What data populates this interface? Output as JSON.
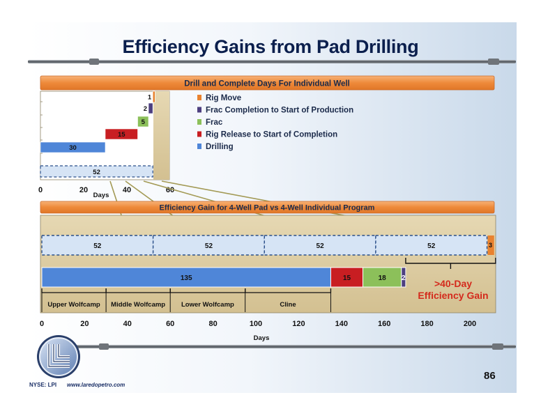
{
  "slide": {
    "title": "Efficiency Gains from Pad Drilling",
    "ticker": "NYSE: LPI",
    "url": "www.laredopetro.com",
    "page_number": "86",
    "colors": {
      "navy": "#0b1f4d",
      "orange_bar": "#f08a3a",
      "panel_tan": "#d9c9a0",
      "drilling_blue": "#4f86d8",
      "rig_release_red": "#c81e22",
      "frac_green": "#8cc05a",
      "frac_completion_purple": "#4d3f80",
      "rig_move_orange": "#e9822f",
      "efficiency_red": "#d42a1c"
    }
  },
  "chart_data": [
    {
      "type": "bar",
      "orientation": "horizontal-stacked",
      "title": "Drill and Complete Days For Individual Well",
      "xlabel": "Days",
      "xlim": [
        0,
        60
      ],
      "xticks": [
        0,
        20,
        40,
        60
      ],
      "segments": [
        {
          "name": "Drilling",
          "start": 0,
          "value": 30,
          "label": "30",
          "color": "#4f86d8"
        },
        {
          "name": "Rig Release to Start of Completion",
          "start": 30,
          "value": 15,
          "label": "15",
          "color": "#c81e22"
        },
        {
          "name": "Frac",
          "start": 45,
          "value": 5,
          "label": "5",
          "color": "#8cc05a"
        },
        {
          "name": "Frac Completion to Start of Production",
          "start": 50,
          "value": 2,
          "label": "2",
          "color": "#4d3f80"
        },
        {
          "name": "Rig Move",
          "start": 52,
          "value": 1,
          "label": "1",
          "color": "#e9822f"
        }
      ],
      "total": {
        "value": 52,
        "label": "52"
      },
      "legend": [
        {
          "name": "Rig Move",
          "color": "#e9822f"
        },
        {
          "name": "Frac Completion to Start of Production",
          "color": "#4d3f80"
        },
        {
          "name": "Frac",
          "color": "#8cc05a"
        },
        {
          "name": "Rig Release to Start of Completion",
          "color": "#c81e22"
        },
        {
          "name": "Drilling",
          "color": "#4f86d8"
        }
      ],
      "legend_position": "right"
    },
    {
      "type": "bar",
      "orientation": "horizontal-stacked",
      "title": "Efficiency Gain for 4-Well Pad vs 4-Well Individual Program",
      "xlabel": "Days",
      "xlim": [
        0,
        215
      ],
      "xticks": [
        0,
        20,
        40,
        60,
        80,
        100,
        120,
        140,
        160,
        180,
        200
      ],
      "individual_program": [
        {
          "start": 0,
          "value": 52,
          "label": "52"
        },
        {
          "start": 52,
          "value": 52,
          "label": "52"
        },
        {
          "start": 104,
          "value": 52,
          "label": "52"
        },
        {
          "start": 156,
          "value": 52,
          "label": "52"
        },
        {
          "start": 208,
          "value": 3,
          "label": "3"
        }
      ],
      "pad_program": [
        {
          "name": "Drilling",
          "start": 0,
          "value": 135,
          "label": "135",
          "color": "#4f86d8"
        },
        {
          "name": "Rig Release to Start of Completion",
          "start": 135,
          "value": 15,
          "label": "15",
          "color": "#c81e22"
        },
        {
          "name": "Frac",
          "start": 150,
          "value": 18,
          "label": "18",
          "color": "#8cc05a"
        },
        {
          "name": "Frac Completion to Start of Production",
          "start": 168,
          "value": 2,
          "label": "2",
          "color": "#4d3f80"
        }
      ],
      "zones": [
        {
          "label": "Upper Wolfcamp",
          "start": 0,
          "end": 30
        },
        {
          "label": "Middle Wolfcamp",
          "start": 30,
          "end": 60
        },
        {
          "label": "Lower Wolfcamp",
          "start": 60,
          "end": 95
        },
        {
          "label": "Cline",
          "start": 95,
          "end": 135
        }
      ],
      "annotation": {
        "line1": ">40-Day",
        "line2": "Efficiency Gain",
        "from": 170,
        "to": 212
      }
    }
  ]
}
